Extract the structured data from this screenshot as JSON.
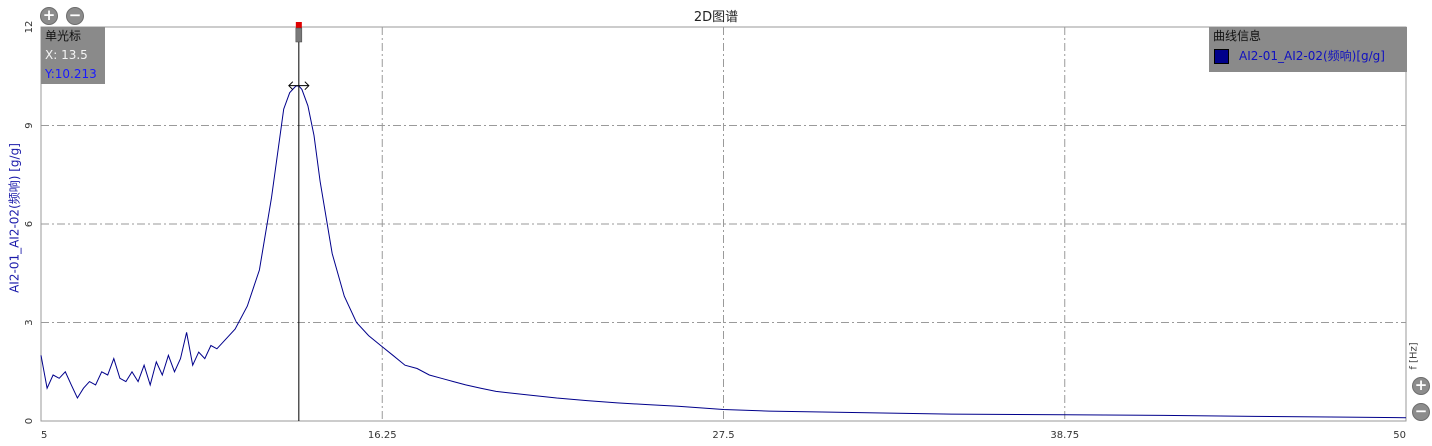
{
  "title": "2D图谱",
  "cursor": {
    "title": "单光标",
    "x_text": "X: 13.5",
    "y_text": "Y:10.213",
    "x": 13.5,
    "y": 10.213
  },
  "legend": {
    "title": "曲线信息",
    "entry": "AI2-01_AI2-02(频响)[g/g]"
  },
  "colors": {
    "series": "#00008b",
    "panel": "#8a8a8a",
    "marker": "#e00000"
  },
  "icons": {
    "zoom_in": "plus-circle-icon",
    "zoom_out": "minus-circle-icon"
  },
  "chart_data": {
    "type": "line",
    "title": "2D图谱",
    "ylabel": "AI2-01_AI2-02(频响) [g/g]",
    "xlabel": "f [Hz]",
    "xlim": [
      5,
      50
    ],
    "ylim": [
      0,
      12
    ],
    "x_ticks": [
      5,
      16.25,
      27.5,
      38.75,
      50
    ],
    "x_tick_labels": [
      "5",
      "16.25",
      "27.5",
      "38.75",
      "50"
    ],
    "y_ticks": [
      0,
      3,
      6,
      9,
      12
    ],
    "y_tick_labels": [
      "0",
      "3",
      "6",
      "9",
      "12"
    ],
    "grid": true,
    "legend_position": "top-right",
    "series": [
      {
        "name": "AI2-01_AI2-02(频响)[g/g]",
        "x": [
          5.0,
          5.2,
          5.4,
          5.6,
          5.8,
          6.0,
          6.2,
          6.4,
          6.6,
          6.8,
          7.0,
          7.2,
          7.4,
          7.6,
          7.8,
          8.0,
          8.2,
          8.4,
          8.6,
          8.8,
          9.0,
          9.2,
          9.4,
          9.6,
          9.8,
          10.0,
          10.2,
          10.4,
          10.6,
          10.8,
          11.0,
          11.4,
          11.8,
          12.2,
          12.6,
          13.0,
          13.2,
          13.4,
          13.5,
          13.6,
          13.8,
          14.0,
          14.2,
          14.6,
          15.0,
          15.4,
          15.8,
          16.2,
          16.6,
          17.0,
          17.4,
          17.8,
          18.2,
          18.6,
          19.0,
          19.5,
          20.0,
          21.0,
          22.0,
          23.0,
          24.0,
          25.0,
          26.0,
          27.5,
          29.0,
          31.0,
          33.0,
          35.0,
          38.75,
          42.0,
          45.0,
          48.0,
          50.0
        ],
        "y": [
          2.0,
          1.0,
          1.4,
          1.3,
          1.5,
          1.1,
          0.7,
          1.0,
          1.2,
          1.1,
          1.5,
          1.4,
          1.9,
          1.3,
          1.2,
          1.5,
          1.2,
          1.7,
          1.1,
          1.8,
          1.4,
          2.0,
          1.5,
          1.9,
          2.7,
          1.7,
          2.1,
          1.9,
          2.3,
          2.2,
          2.4,
          2.8,
          3.5,
          4.6,
          6.8,
          9.5,
          10.0,
          10.2,
          10.21,
          10.1,
          9.6,
          8.7,
          7.3,
          5.1,
          3.8,
          3.0,
          2.6,
          2.3,
          2.0,
          1.7,
          1.6,
          1.4,
          1.3,
          1.2,
          1.1,
          1.0,
          0.9,
          0.8,
          0.7,
          0.62,
          0.55,
          0.5,
          0.45,
          0.35,
          0.3,
          0.27,
          0.24,
          0.21,
          0.19,
          0.17,
          0.14,
          0.12,
          0.1
        ]
      }
    ]
  }
}
